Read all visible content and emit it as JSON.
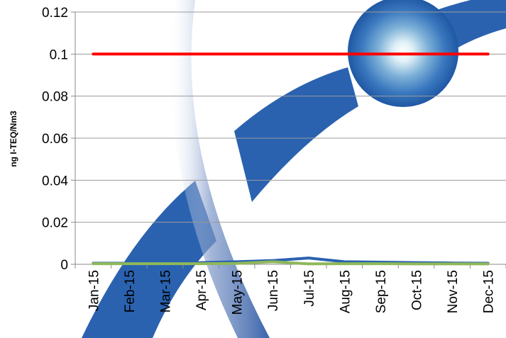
{
  "chart_data": {
    "type": "line",
    "title": "",
    "xlabel": "",
    "ylabel": "ng I-TEQ/Nm3",
    "ylim": [
      0,
      0.12
    ],
    "yticks": [
      "0",
      "0.02",
      "0.04",
      "0.06",
      "0.08",
      "0.1",
      "0.12"
    ],
    "categories": [
      "Jan-15",
      "Feb-15",
      "Mar-15",
      "Apr-15",
      "May-15",
      "Jun-15",
      "Jul-15",
      "Aug-15",
      "Sep-15",
      "Oct-15",
      "Nov-15",
      "Dec-15"
    ],
    "grid": true,
    "legend": "none",
    "series": [
      {
        "values": [
          0.1,
          0.1,
          0.1,
          0.1,
          0.1,
          0.1,
          0.1,
          0.1,
          0.1,
          0.1,
          0.1,
          0.1
        ],
        "color": "#ff0000"
      },
      {
        "values": [
          0.0005,
          0.0005,
          0.0005,
          0.0008,
          0.0012,
          0.0018,
          0.003,
          0.0012,
          0.001,
          0.0008,
          0.0006,
          0.0005
        ],
        "color": "#2a62b0"
      },
      {
        "values": [
          0.0003,
          0.0003,
          0.0003,
          0.0003,
          0.0004,
          0.0012,
          0.0002,
          0.0003,
          0.0003,
          0.0002,
          0.0002,
          0.0002
        ],
        "color": "#8fb85a"
      }
    ]
  }
}
